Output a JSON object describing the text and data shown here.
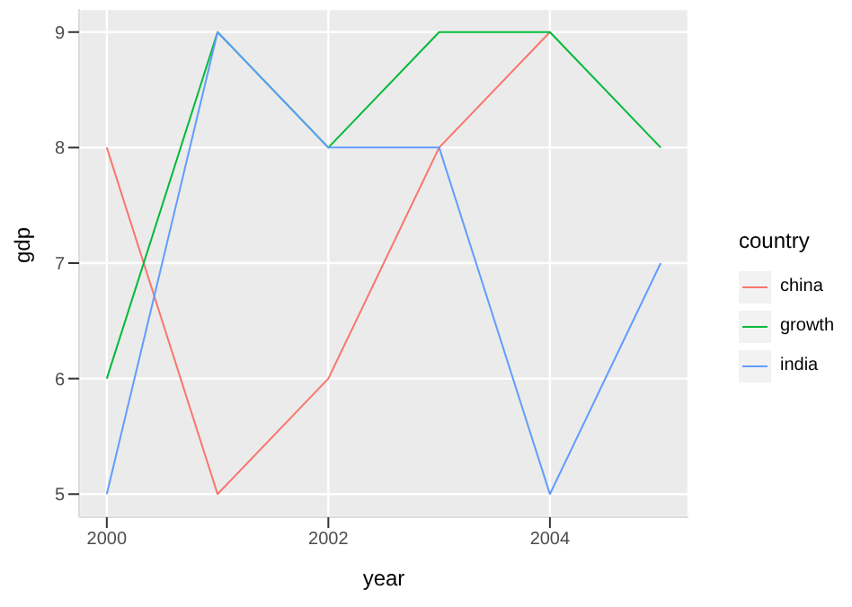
{
  "chart_data": {
    "type": "line",
    "xlabel": "year",
    "ylabel": "gdp",
    "legend_title": "country",
    "x": [
      2000,
      2001,
      2002,
      2003,
      2004,
      2005
    ],
    "series": [
      {
        "name": "china",
        "color": "#f8766d",
        "values": [
          8,
          5,
          6,
          8,
          9,
          null
        ]
      },
      {
        "name": "growth",
        "color": "#00ba38",
        "values": [
          6,
          9,
          8,
          9,
          9,
          8
        ]
      },
      {
        "name": "india",
        "color": "#619cff",
        "values": [
          5,
          9,
          8,
          8,
          5,
          7
        ]
      }
    ],
    "xlim": [
      1999.75,
      2005.25
    ],
    "ylim": [
      4.8,
      9.2
    ],
    "xticks": [
      2000,
      2002,
      2004
    ],
    "yticks": [
      5,
      6,
      7,
      8,
      9
    ],
    "grid": true,
    "legend": "right",
    "marker": "none",
    "line_style": "solid"
  }
}
